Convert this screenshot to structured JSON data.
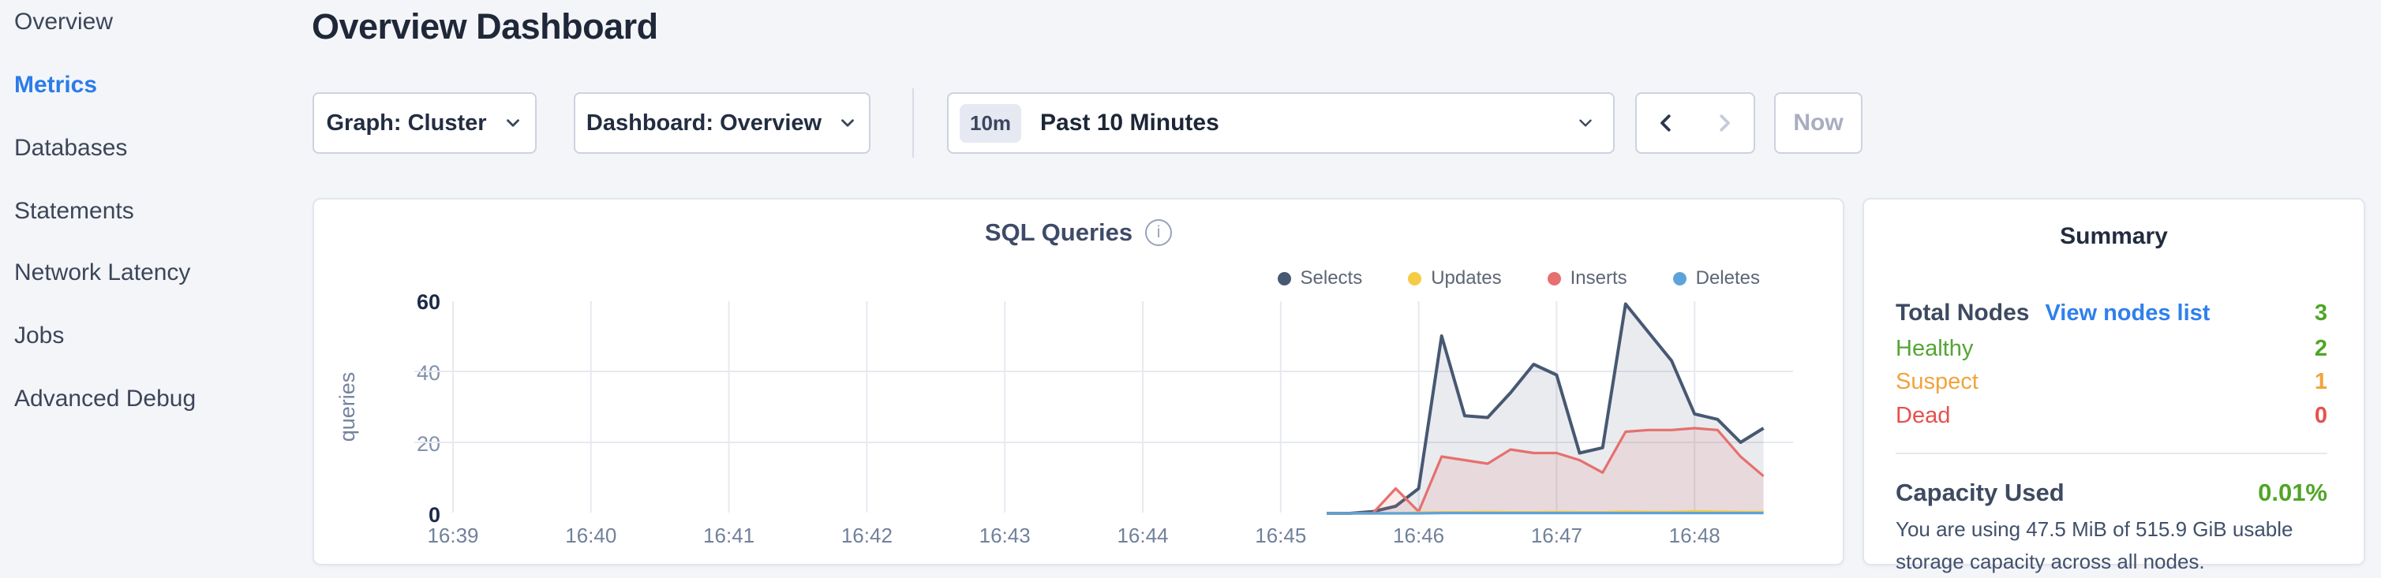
{
  "sidebar": {
    "items": [
      {
        "label": "Overview",
        "active": false
      },
      {
        "label": "Metrics",
        "active": true
      },
      {
        "label": "Databases",
        "active": false
      },
      {
        "label": "Statements",
        "active": false
      },
      {
        "label": "Network Latency",
        "active": false
      },
      {
        "label": "Jobs",
        "active": false
      },
      {
        "label": "Advanced Debug",
        "active": false
      }
    ],
    "active_color": "#2b7ce9"
  },
  "header": {
    "title": "Overview Dashboard"
  },
  "controls": {
    "graph_dropdown": {
      "label": "Graph: Cluster"
    },
    "dashboard_dropdown": {
      "label": "Dashboard: Overview"
    },
    "time_selector": {
      "badge": "10m",
      "label": "Past 10 Minutes"
    },
    "prev_enabled": true,
    "next_enabled": false,
    "now_button": "Now"
  },
  "chart_data": {
    "type": "area-line",
    "title": "SQL Queries",
    "ylabel": "queries",
    "info_icon": "i",
    "grid": true,
    "legend_position": "top-right",
    "ylim": [
      0,
      60
    ],
    "y_ticks": [
      0,
      20,
      40,
      60
    ],
    "x_ticks": [
      "16:39",
      "16:40",
      "16:41",
      "16:42",
      "16:43",
      "16:44",
      "16:45",
      "16:46",
      "16:47",
      "16:48"
    ],
    "sample_interval_seconds": 10,
    "x_sample_times": [
      "16:45:20",
      "16:45:30",
      "16:45:40",
      "16:45:50",
      "16:46:00",
      "16:46:10",
      "16:46:20",
      "16:46:30",
      "16:46:40",
      "16:46:50",
      "16:47:00",
      "16:47:10",
      "16:47:20",
      "16:47:30",
      "16:47:40",
      "16:47:50",
      "16:48:00",
      "16:48:10",
      "16:48:20",
      "16:48:30"
    ],
    "series": [
      {
        "name": "Selects",
        "color": "#475872",
        "fill": "rgba(71,88,114,0.12)",
        "values": [
          0,
          0,
          0.5,
          2,
          7,
          50,
          27.5,
          27,
          34,
          42,
          39,
          17,
          18.5,
          59,
          51,
          43,
          28,
          26.5,
          20,
          24
        ]
      },
      {
        "name": "Updates",
        "color": "#f6cb45",
        "fill": "none",
        "values": [
          0,
          0,
          0,
          0,
          0.2,
          0.3,
          0.3,
          0.4,
          0.3,
          0.3,
          0.4,
          0.3,
          0.3,
          0.5,
          0.4,
          0.4,
          0.6,
          0.5,
          0.4,
          0.4
        ]
      },
      {
        "name": "Inserts",
        "color": "#e5706e",
        "fill": "rgba(229,112,110,0.14)",
        "values": [
          0,
          0,
          0,
          7,
          0.5,
          16,
          15,
          14,
          18,
          17,
          17,
          15,
          11.5,
          23,
          23.5,
          23.5,
          24,
          23.5,
          16,
          10.5
        ]
      },
      {
        "name": "Deletes",
        "color": "#5da3d9",
        "fill": "none",
        "values": [
          0,
          0,
          0,
          0,
          0,
          0.1,
          0.1,
          0.1,
          0.1,
          0.1,
          0.1,
          0.1,
          0.1,
          0.1,
          0.1,
          0.1,
          0.1,
          0.1,
          0.1,
          0.1
        ]
      }
    ]
  },
  "summary": {
    "title": "Summary",
    "rows": [
      {
        "label": "Total Nodes",
        "link": "View nodes list",
        "value": "3"
      },
      {
        "label": "Healthy",
        "value": "2"
      },
      {
        "label": "Suspect",
        "value": "1"
      },
      {
        "label": "Dead",
        "value": "0"
      }
    ],
    "capacity": {
      "label": "Capacity Used",
      "value": "0.01%",
      "description": "You are using 47.5 MiB of 515.9 GiB usable storage capacity across all nodes."
    },
    "colors": {
      "green": "#4fa527",
      "orange": "#f2a33c",
      "red": "#e5504e",
      "link": "#2f80ed"
    }
  }
}
